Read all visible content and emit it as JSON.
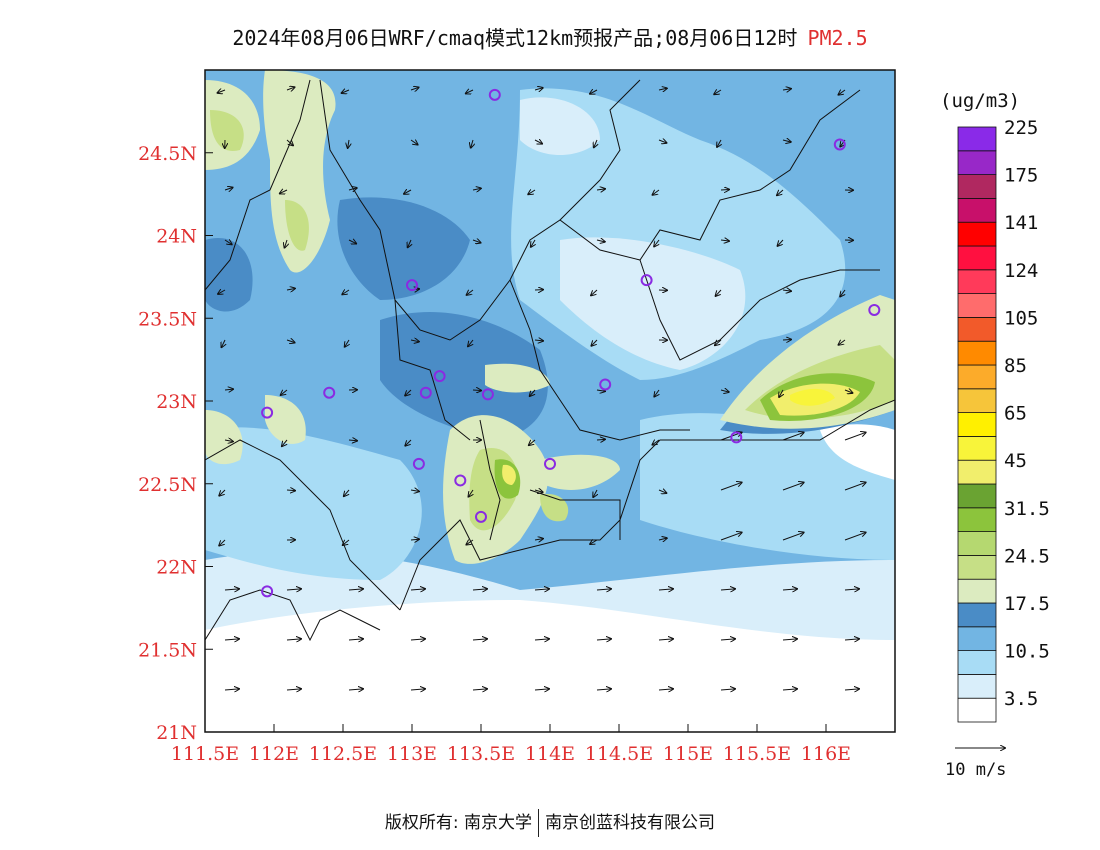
{
  "title": {
    "main": "2024年08月06日WRF/cmaq模式12km预报产品;08月06日12时",
    "pollutant": "PM2.5"
  },
  "map": {
    "lat_labels": [
      "24.5N",
      "24N",
      "23.5N",
      "23N",
      "22.5N",
      "22N",
      "21.5N",
      "21N"
    ],
    "lon_labels": [
      "111.5E",
      "112E",
      "112.5E",
      "113E",
      "113.5E",
      "114E",
      "114.5E",
      "115E",
      "115.5E",
      "116E"
    ],
    "lat_range": [
      21,
      25
    ],
    "lon_range": [
      111.5,
      116.5
    ],
    "station_color": "#8a2be2",
    "stations": [
      {
        "lon": 113.6,
        "lat": 24.85
      },
      {
        "lon": 116.1,
        "lat": 24.55
      },
      {
        "lon": 113.0,
        "lat": 23.7
      },
      {
        "lon": 114.7,
        "lat": 23.73
      },
      {
        "lon": 116.35,
        "lat": 23.55
      },
      {
        "lon": 112.4,
        "lat": 23.05
      },
      {
        "lon": 111.95,
        "lat": 22.93
      },
      {
        "lon": 113.1,
        "lat": 23.05
      },
      {
        "lon": 113.2,
        "lat": 23.15
      },
      {
        "lon": 113.55,
        "lat": 23.04
      },
      {
        "lon": 114.4,
        "lat": 23.1
      },
      {
        "lon": 113.05,
        "lat": 22.62
      },
      {
        "lon": 113.35,
        "lat": 22.52
      },
      {
        "lon": 113.5,
        "lat": 22.3
      },
      {
        "lon": 114.0,
        "lat": 22.62
      },
      {
        "lon": 115.35,
        "lat": 22.78
      },
      {
        "lon": 111.95,
        "lat": 21.85
      }
    ]
  },
  "colorbar": {
    "units": "(ug/m3)",
    "colors": [
      "#ffffff",
      "#d9eefa",
      "#a8dcf5",
      "#72b5e3",
      "#4a8cc6",
      "#dcebc0",
      "#c6df86",
      "#b5d870",
      "#8cc43c",
      "#6aa332",
      "#f1ee6c",
      "#f8f43a",
      "#fff000",
      "#f6c53a",
      "#fcab2a",
      "#ff8a00",
      "#f25a2a",
      "#ff6c6c",
      "#ff3a5a",
      "#ff1040",
      "#ff0000",
      "#c8106a",
      "#b02860",
      "#9828c8",
      "#8a2ae8"
    ],
    "labels": [
      "3.5",
      "10.5",
      "17.5",
      "24.5",
      "31.5",
      "45",
      "65",
      "85",
      "105",
      "124",
      "141",
      "175",
      "225"
    ]
  },
  "wind_reference": "10 m/s",
  "footer": {
    "left": "版权所有: 南京大学",
    "right": "南京创蓝科技有限公司"
  }
}
